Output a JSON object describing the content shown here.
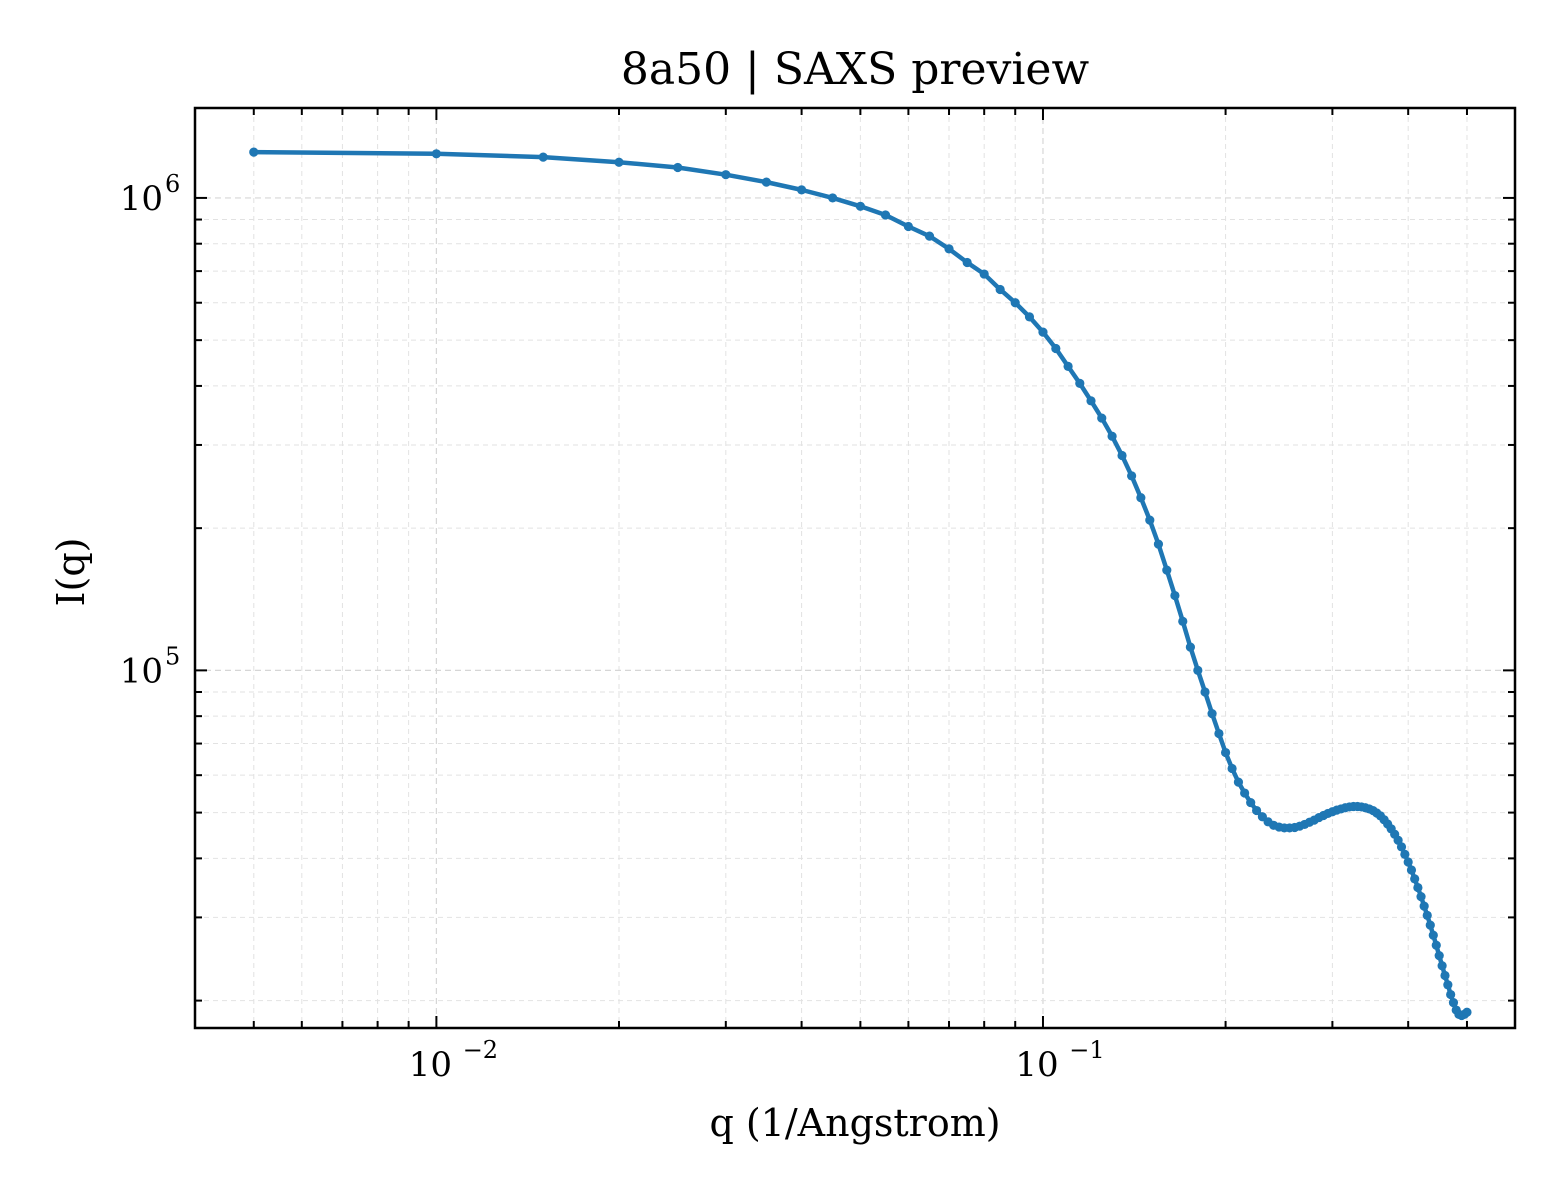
{
  "chart_data": {
    "type": "line",
    "title": "8a50 | SAXS preview",
    "xlabel": "q (1/Angstrom)",
    "ylabel": "I(q)",
    "xscale": "log",
    "yscale": "log",
    "xlim": [
      0.004,
      0.6
    ],
    "ylim": [
      17500,
      1550000
    ],
    "grid": true,
    "legend": "none",
    "series_color": "#1f77b4",
    "x_ticks": [
      {
        "value": 0.01,
        "base": "10",
        "exp": "−2"
      },
      {
        "value": 0.1,
        "base": "10",
        "exp": "−1"
      }
    ],
    "y_ticks": [
      {
        "value": 100000,
        "base": "10",
        "exp": "5"
      },
      {
        "value": 1000000,
        "base": "10",
        "exp": "6"
      }
    ],
    "series": [
      {
        "x": [
          0.005,
          0.01,
          0.015,
          0.02,
          0.025,
          0.03,
          0.035,
          0.04,
          0.045,
          0.05,
          0.055,
          0.06,
          0.065,
          0.07,
          0.075,
          0.08,
          0.085,
          0.09,
          0.095,
          0.1,
          0.105,
          0.11,
          0.115,
          0.12,
          0.125,
          0.13,
          0.135,
          0.14,
          0.145,
          0.15,
          0.155,
          0.16,
          0.165,
          0.17,
          0.175,
          0.18,
          0.185,
          0.19,
          0.195,
          0.2,
          0.205,
          0.21,
          0.215,
          0.22,
          0.225,
          0.23,
          0.235,
          0.24,
          0.245,
          0.25,
          0.255,
          0.26,
          0.265,
          0.27,
          0.275,
          0.28,
          0.285,
          0.29,
          0.295,
          0.3,
          0.305,
          0.31,
          0.315,
          0.32,
          0.325,
          0.33,
          0.335,
          0.34,
          0.345,
          0.35,
          0.355,
          0.36,
          0.365,
          0.37,
          0.375,
          0.38,
          0.385,
          0.39,
          0.395,
          0.4,
          0.405,
          0.41,
          0.415,
          0.42,
          0.425,
          0.43,
          0.435,
          0.44,
          0.445,
          0.45,
          0.455,
          0.46,
          0.465,
          0.47,
          0.475,
          0.48,
          0.485,
          0.49,
          0.495,
          0.5
        ],
        "values": [
          1250000,
          1240000,
          1220000,
          1190000,
          1160000,
          1120000,
          1080000,
          1040000,
          1000000,
          960000,
          920000,
          870000,
          830000,
          780000,
          730000,
          690000,
          640000,
          600000,
          560000,
          520000,
          480000,
          440000,
          405000,
          372000,
          342000,
          313000,
          285000,
          258000,
          232000,
          208000,
          185000,
          163000,
          144000,
          127000,
          112000,
          100000,
          90000,
          81000,
          73500,
          67000,
          62000,
          58000,
          55000,
          52500,
          50500,
          49000,
          47800,
          47000,
          46600,
          46400,
          46400,
          46500,
          46800,
          47200,
          47700,
          48200,
          48800,
          49300,
          49800,
          50200,
          50600,
          50900,
          51200,
          51400,
          51500,
          51500,
          51400,
          51200,
          50900,
          50500,
          49900,
          49200,
          48300,
          47300,
          46200,
          45000,
          43700,
          42300,
          40800,
          39300,
          37800,
          36200,
          34700,
          33200,
          31700,
          30300,
          28900,
          27500,
          26200,
          24900,
          23700,
          22600,
          21600,
          20600,
          19800,
          19100,
          18700,
          18600,
          18700,
          18900
        ]
      }
    ]
  }
}
